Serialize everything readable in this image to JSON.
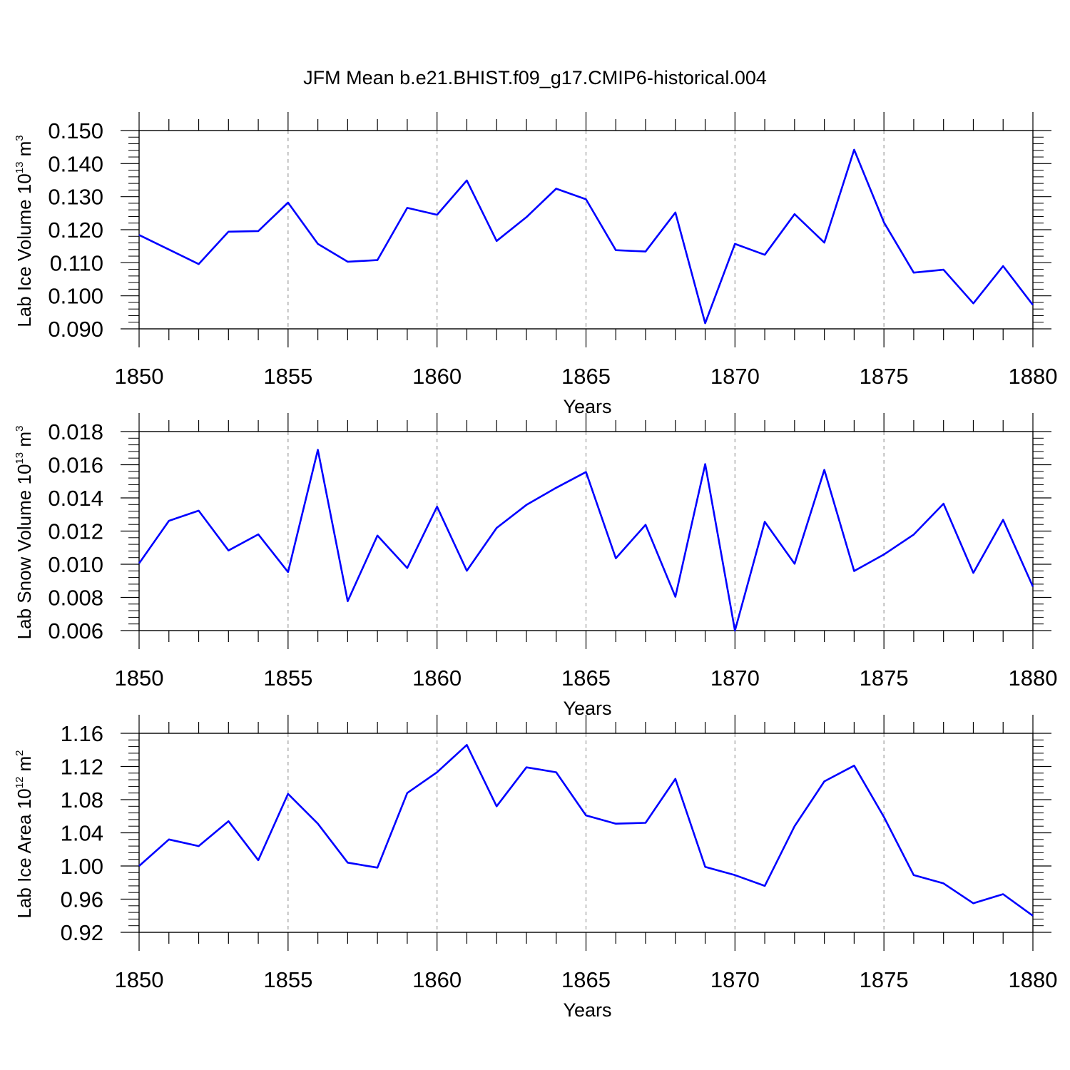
{
  "title": "JFM Mean b.e21.BHIST.f09_g17.CMIP6-historical.004",
  "line_color": "#0000ff",
  "chart_data": [
    {
      "type": "line",
      "ylabel": {
        "text": "Lab Ice Volume 10",
        "exponent": "13",
        "unit": "m",
        "unit_exponent": "3"
      },
      "xlabel": "Years",
      "xlim": [
        1850,
        1880
      ],
      "ylim": [
        0.09,
        0.15
      ],
      "x_ticks": [
        "1850",
        "1855",
        "1860",
        "1865",
        "1870",
        "1875",
        "1880"
      ],
      "y_ticks": [
        "0.090",
        "0.100",
        "0.110",
        "0.120",
        "0.130",
        "0.140",
        "0.150"
      ],
      "grid": "dashed vertical lines at labeled years",
      "x": [
        1850,
        1851,
        1852,
        1853,
        1854,
        1855,
        1856,
        1857,
        1858,
        1859,
        1860,
        1861,
        1862,
        1863,
        1864,
        1865,
        1866,
        1867,
        1868,
        1869,
        1870,
        1871,
        1872,
        1873,
        1874,
        1875,
        1876,
        1877,
        1878,
        1879,
        1880
      ],
      "series": [
        {
          "values": [
            0.1184,
            0.114,
            0.1096,
            0.1194,
            0.1196,
            0.1282,
            0.1157,
            0.1103,
            0.1108,
            0.1266,
            0.1245,
            0.1349,
            0.1166,
            0.1238,
            0.1324,
            0.1292,
            0.1138,
            0.1134,
            0.1252,
            0.0917,
            0.1157,
            0.1124,
            0.1247,
            0.1161,
            0.1442,
            0.1222,
            0.107,
            0.1079,
            0.0977,
            0.109,
            0.0972
          ]
        }
      ]
    },
    {
      "type": "line",
      "ylabel": {
        "text": "Lab Snow Volume 10",
        "exponent": "13",
        "unit": "m",
        "unit_exponent": "3"
      },
      "xlabel": "Years",
      "xlim": [
        1850,
        1880
      ],
      "ylim": [
        0.006,
        0.018
      ],
      "x_ticks": [
        "1850",
        "1855",
        "1860",
        "1865",
        "1870",
        "1875",
        "1880"
      ],
      "y_ticks": [
        "0.006",
        "0.008",
        "0.010",
        "0.012",
        "0.014",
        "0.016",
        "0.018"
      ],
      "grid": "dashed vertical lines at labeled years",
      "x": [
        1850,
        1851,
        1852,
        1853,
        1854,
        1855,
        1856,
        1857,
        1858,
        1859,
        1860,
        1861,
        1862,
        1863,
        1864,
        1865,
        1866,
        1867,
        1868,
        1869,
        1870,
        1871,
        1872,
        1873,
        1874,
        1875,
        1876,
        1877,
        1878,
        1879,
        1880
      ],
      "series": [
        {
          "values": [
            0.01005,
            0.01262,
            0.01323,
            0.01083,
            0.0118,
            0.00953,
            0.0169,
            0.00777,
            0.01173,
            0.00977,
            0.01347,
            0.00961,
            0.01219,
            0.01358,
            0.01461,
            0.01556,
            0.01036,
            0.01238,
            0.00804,
            0.01604,
            0.006,
            0.01256,
            0.01003,
            0.01569,
            0.00959,
            0.01059,
            0.01179,
            0.01365,
            0.00948,
            0.01268,
            0.00865
          ]
        }
      ]
    },
    {
      "type": "line",
      "ylabel": {
        "text": "Lab Ice Area 10",
        "exponent": "12",
        "unit": "m",
        "unit_exponent": "2"
      },
      "xlabel": "Years",
      "xlim": [
        1850,
        1880
      ],
      "ylim": [
        0.92,
        1.16
      ],
      "x_ticks": [
        "1850",
        "1855",
        "1860",
        "1865",
        "1870",
        "1875",
        "1880"
      ],
      "y_ticks": [
        "0.92",
        "0.96",
        "1.00",
        "1.04",
        "1.08",
        "1.12",
        "1.16"
      ],
      "grid": "dashed vertical lines at labeled years",
      "x": [
        1850,
        1851,
        1852,
        1853,
        1854,
        1855,
        1856,
        1857,
        1858,
        1859,
        1860,
        1861,
        1862,
        1863,
        1864,
        1865,
        1866,
        1867,
        1868,
        1869,
        1870,
        1871,
        1872,
        1873,
        1874,
        1875,
        1876,
        1877,
        1878,
        1879,
        1880
      ],
      "series": [
        {
          "values": [
            1.0,
            1.032,
            1.024,
            1.054,
            1.007,
            1.087,
            1.051,
            1.004,
            0.998,
            1.088,
            1.113,
            1.146,
            1.072,
            1.119,
            1.113,
            1.061,
            1.051,
            1.052,
            1.105,
            0.999,
            0.989,
            0.976,
            1.048,
            1.102,
            1.121,
            1.059,
            0.989,
            0.979,
            0.955,
            0.966,
            0.94
          ]
        }
      ]
    }
  ]
}
